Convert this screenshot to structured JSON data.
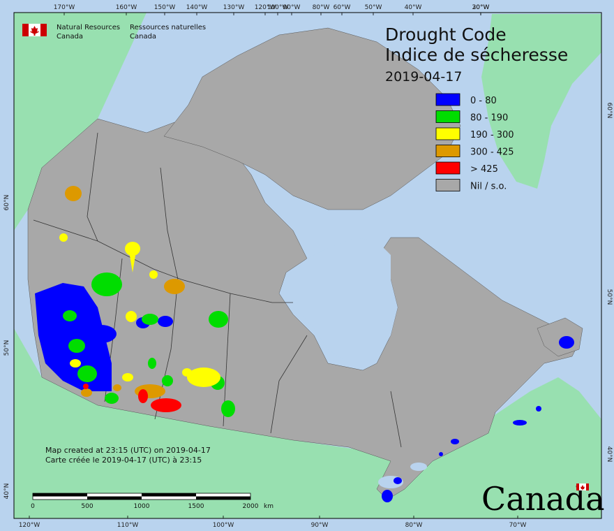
{
  "map": {
    "title_en": "Drought Code",
    "title_fr": "Indice de sécheresse",
    "date": "2019-04-17",
    "agency": {
      "en_line1": "Natural Resources",
      "en_line2": "Canada",
      "fr_line1": "Ressources naturelles",
      "fr_line2": "Canada"
    },
    "wordmark": "Canada",
    "legend": [
      {
        "label": "0 - 80",
        "color": "#0000ff"
      },
      {
        "label": "80 - 190",
        "color": "#00dd00"
      },
      {
        "label": "190 - 300",
        "color": "#ffff00"
      },
      {
        "label": "300 - 425",
        "color": "#dd9900"
      },
      {
        "label": "> 425",
        "color": "#ff0000"
      },
      {
        "label": "Nil / s.o.",
        "color": "#a8a8a8"
      }
    ],
    "notes": {
      "line1": "Map created at 23:15 (UTC) on 2019-04-17",
      "line2": "Carte créée le 2019-04-17 (UTC) à 23:15"
    },
    "scale": {
      "labels": [
        "0",
        "500",
        "1000",
        "1500",
        "2000"
      ],
      "unit": "km"
    },
    "top_ticks": [
      "170°W",
      "160°W",
      "150°W",
      "140°W",
      "130°W",
      "120°W",
      "100°W",
      "90°W",
      "80°W",
      "60°W",
      "50°W",
      "40°W",
      "30°W",
      "20°W"
    ],
    "bottom_ticks": [
      "120°W",
      "110°W",
      "100°W",
      "90°W",
      "80°W",
      "70°W"
    ],
    "left_ticks": [
      "60°N",
      "50°N",
      "40°N"
    ],
    "right_ticks": [
      "60°N",
      "50°N",
      "40°N"
    ],
    "colors": {
      "ocean": "#b9d3ee",
      "foreign_land": "#98e0b0",
      "canada_nil": "#a8a8a8",
      "border": "#333333"
    }
  }
}
